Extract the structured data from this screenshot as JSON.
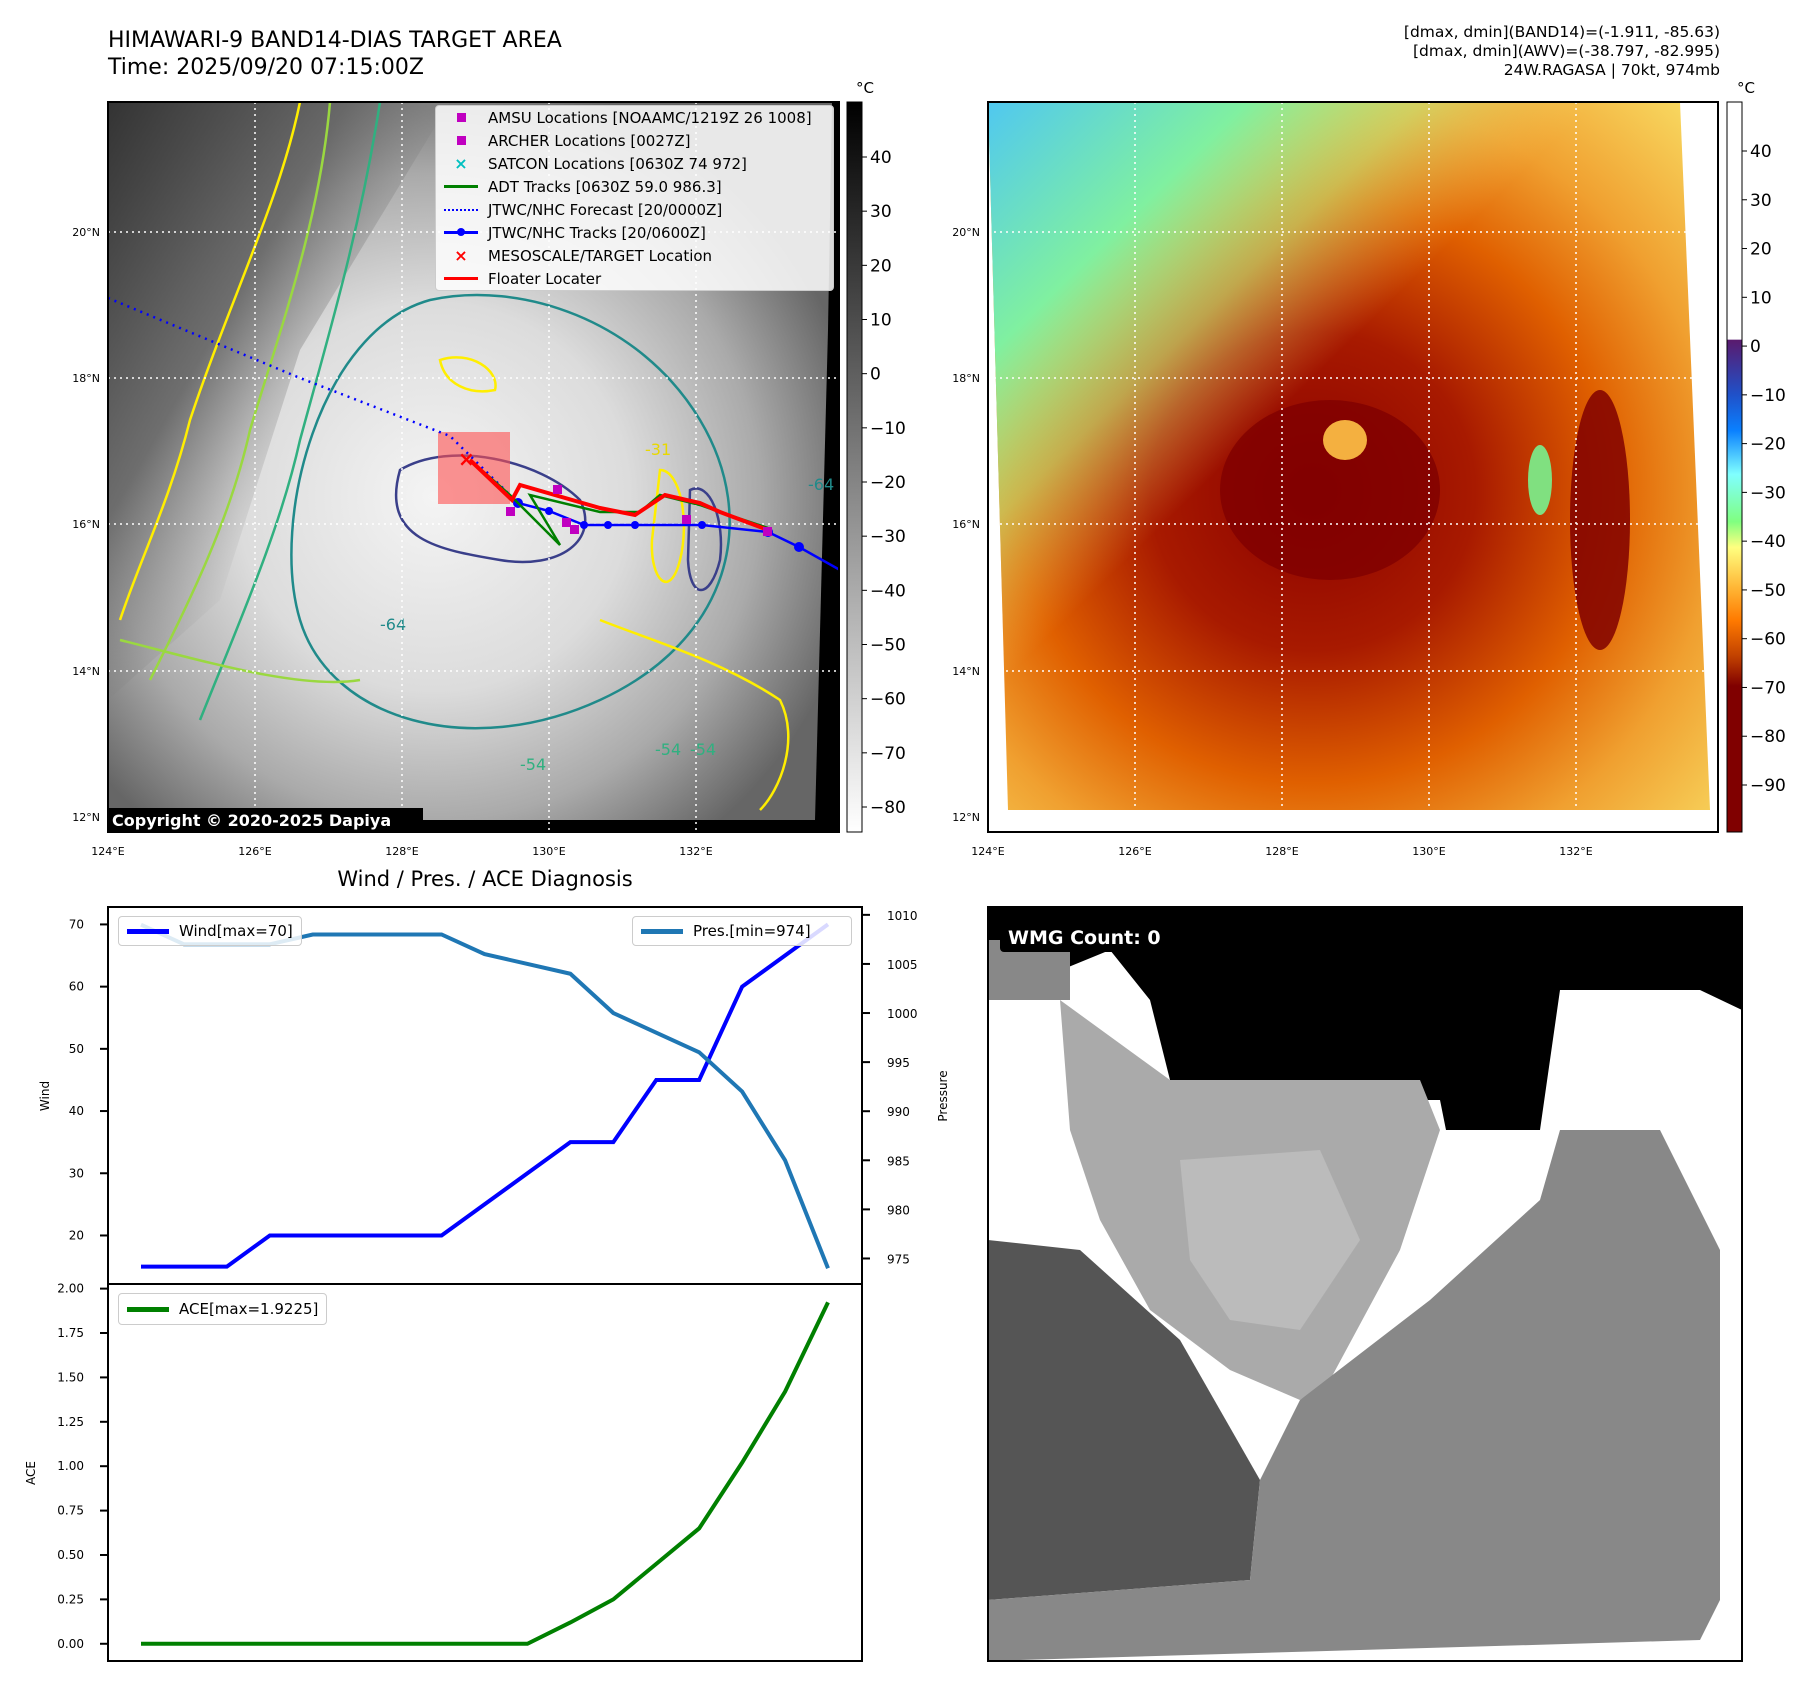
{
  "header": {
    "title_line1": "HIMAWARI-9 BAND14-DIAS TARGET AREA",
    "title_line2": "Time: 2025/09/20 07:15:00Z",
    "stats_line1": "[dmax, dmin](BAND14)=(-1.911, -85.63)",
    "stats_line2": "[dmax, dmin](AWV)=(-38.797, -82.995)",
    "stats_line3": "24W.RAGASA | 70kt, 974mb"
  },
  "maps": {
    "lat_labels": [
      "20°N",
      "18°N",
      "16°N",
      "14°N",
      "12°N"
    ],
    "lon_labels": [
      "124°E",
      "126°E",
      "128°E",
      "130°E",
      "132°E"
    ],
    "copyright": "Copyright © 2020-2025 Dapiya",
    "contour_labels": [
      "-31",
      "-64",
      "-54",
      "-54",
      "-64",
      "-54"
    ],
    "legend": [
      {
        "label": "AMSU Locations [NOAAMC/1219Z 26 1008]",
        "symbol": "square",
        "color": "#c000c0"
      },
      {
        "label": "ARCHER Locations [0027Z]",
        "symbol": "square",
        "color": "#c000c0"
      },
      {
        "label": "SATCON Locations [0630Z 74 972]",
        "symbol": "x",
        "color": "#00c0c0"
      },
      {
        "label": "ADT Tracks [0630Z 59.0 986.3]",
        "symbol": "line",
        "color": "#008000"
      },
      {
        "label": "JTWC/NHC Forecast [20/0000Z]",
        "symbol": "dotted",
        "color": "#0000ff"
      },
      {
        "label": "JTWC/NHC Tracks [20/0600Z]",
        "symbol": "line-dot",
        "color": "#0000ff"
      },
      {
        "label": "MESOSCALE/TARGET Location",
        "symbol": "x",
        "color": "#ff0000"
      },
      {
        "label": "Floater Locater",
        "symbol": "line",
        "color": "#ff0000"
      }
    ],
    "left_colorbar": {
      "unit": "°C",
      "ticks": [
        "40",
        "30",
        "20",
        "10",
        "0",
        "−10",
        "−20",
        "−30",
        "−40",
        "−50",
        "−60",
        "−70",
        "−80"
      ]
    },
    "right_colorbar": {
      "unit": "°C",
      "ticks": [
        "40",
        "30",
        "20",
        "10",
        "0",
        "−10",
        "−20",
        "−30",
        "−40",
        "−50",
        "−60",
        "−70",
        "−80",
        "−90"
      ]
    }
  },
  "wmg": {
    "label": "WMG Count: 0"
  },
  "chart_data": [
    {
      "type": "line",
      "title": "Wind / Pres. / ACE Diagnosis",
      "x": [
        0,
        1,
        2,
        3,
        4,
        5,
        6,
        7,
        8,
        9,
        10,
        11,
        12,
        13,
        14,
        15,
        16
      ],
      "series": [
        {
          "name": "Wind[max=70]",
          "axis": "left",
          "color": "#0000ff",
          "values": [
            15,
            15,
            15,
            20,
            20,
            20,
            20,
            20,
            25,
            30,
            35,
            35,
            45,
            45,
            60,
            65,
            70
          ]
        },
        {
          "name": "Pres.[min=974]",
          "axis": "right",
          "color": "#1f77b4",
          "values": [
            1009,
            1007,
            1007,
            1007,
            1008,
            1008,
            1008,
            1008,
            1006,
            1005,
            1004,
            1000,
            998,
            996,
            992,
            985,
            974
          ]
        }
      ],
      "ylabel": "Wind",
      "y2label": "Pressure",
      "ylim": [
        12.2,
        72.8
      ],
      "y2lim": [
        972.4,
        1010.8
      ],
      "yticks": [
        "20",
        "30",
        "40",
        "50",
        "60",
        "70"
      ],
      "y2ticks": [
        "975",
        "980",
        "985",
        "990",
        "995",
        "1000",
        "1005",
        "1010"
      ],
      "legend_placement": [
        "upper-left",
        "upper-right"
      ]
    },
    {
      "type": "line",
      "x": [
        0,
        1,
        2,
        3,
        4,
        5,
        6,
        7,
        8,
        9,
        10,
        11,
        12,
        13,
        14,
        15,
        16
      ],
      "series": [
        {
          "name": "ACE[max=1.9225]",
          "color": "#008000",
          "values": [
            0,
            0,
            0,
            0,
            0,
            0,
            0,
            0,
            0,
            0,
            0.12,
            0.25,
            0.45,
            0.65,
            1.02,
            1.42,
            1.9225
          ]
        }
      ],
      "ylabel": "ACE",
      "ylim": [
        -0.097,
        2.026
      ],
      "yticks": [
        "0.00",
        "0.25",
        "0.50",
        "0.75",
        "1.00",
        "1.25",
        "1.50",
        "1.75",
        "2.00"
      ],
      "legend_placement": "upper-left"
    }
  ]
}
